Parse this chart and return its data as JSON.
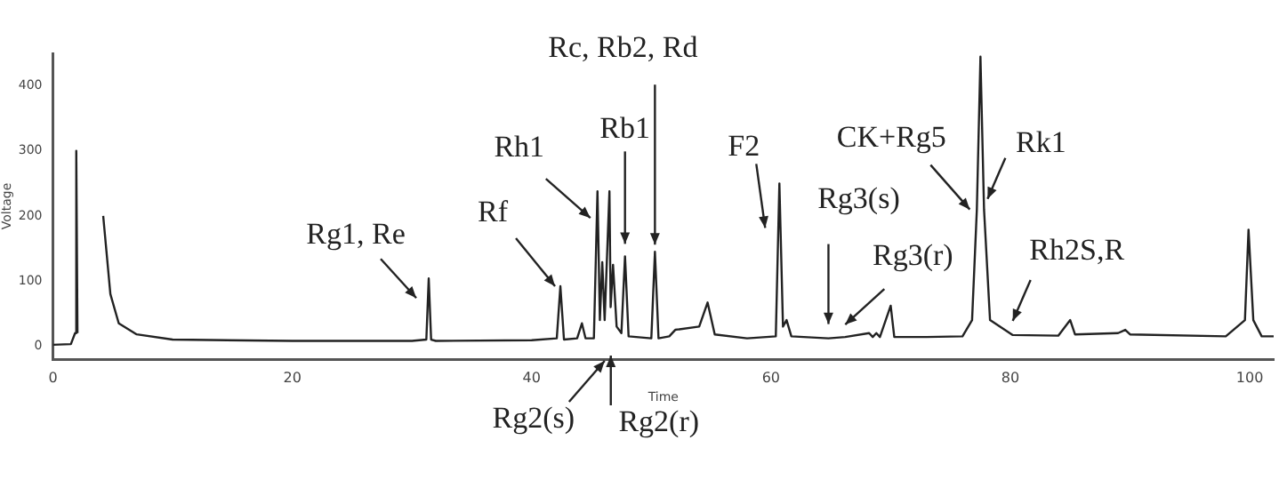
{
  "chart_data": {
    "type": "line",
    "xlabel": "Time",
    "ylabel": "Voltage",
    "xlim": [
      0,
      102
    ],
    "xticks": [
      0,
      20,
      40,
      60,
      80,
      100
    ],
    "ylim": [
      -20,
      450
    ],
    "yticks": [
      0,
      100,
      200,
      300,
      400
    ],
    "grid": false,
    "legend": false,
    "marker": "none",
    "line_style": "solid",
    "series": [
      {
        "color": "#222222",
        "x": [
          0,
          1.5,
          1.85,
          1.95,
          2.05,
          2.15,
          3.5,
          4.2,
          4.8,
          5.5,
          7,
          10,
          20,
          30,
          31.2,
          31.4,
          31.6,
          32,
          40,
          42.1,
          42.4,
          42.7,
          43.8,
          44.2,
          44.5,
          45.2,
          45.5,
          45.7,
          45.9,
          46.1,
          46.5,
          46.6,
          46.8,
          47.1,
          47.5,
          47.8,
          48.1,
          50,
          50.3,
          50.6,
          51.5,
          52,
          54,
          54.7,
          55.3,
          58,
          60.4,
          60.7,
          61,
          61.3,
          61.7,
          64.8,
          66.2,
          68.2,
          68.5,
          68.8,
          69.1,
          70,
          70.3,
          73,
          76,
          76.8,
          77.2,
          77.5,
          77.8,
          78.3,
          80.2,
          84,
          85,
          85.4,
          89,
          89.6,
          90,
          98,
          99.6,
          99.9,
          100.3,
          101,
          102
        ],
        "values": [
          2,
          3,
          20,
          300,
          20,
          null,
          null,
          200,
          80,
          35,
          18,
          10,
          8,
          8,
          10,
          104,
          10,
          8,
          9,
          12,
          92,
          10,
          12,
          35,
          12,
          12,
          238,
          40,
          129,
          40,
          238,
          60,
          125,
          30,
          20,
          138,
          15,
          12,
          145,
          12,
          15,
          25,
          30,
          67,
          18,
          12,
          15,
          250,
          30,
          40,
          15,
          12,
          14,
          20,
          14,
          20,
          14,
          62,
          14,
          14,
          15,
          40,
          210,
          445,
          210,
          40,
          17,
          16,
          40,
          18,
          20,
          25,
          18,
          15,
          40,
          179,
          40,
          15,
          15
        ]
      }
    ],
    "annotations": [
      {
        "text": "Rg1, Re",
        "x": 31.4,
        "y": 104
      },
      {
        "text": "Rf",
        "x": 42.4,
        "y": 92
      },
      {
        "text": "Rh1",
        "x": 45.5,
        "y": 238
      },
      {
        "text": "Rb1",
        "x": 47.8,
        "y": 138
      },
      {
        "text": "Rc, Rb2, Rd",
        "x": 50.3,
        "y": 145
      },
      {
        "text": "Rg2(s)",
        "x": 46.1,
        "y": 40
      },
      "Rg2(r)",
      {
        "text": "F2",
        "x": 60.7,
        "y": 250
      },
      {
        "text": "Rg3(s)",
        "x": 64.8,
        "y": 12
      },
      {
        "text": "Rg3(r)",
        "x": 66.2,
        "y": 14
      },
      {
        "text": "CK+Rg5",
        "x": 77.2,
        "y": 210
      },
      {
        "text": "Rk1",
        "x": 77.5,
        "y": 445
      },
      {
        "text": "Rh2S,R",
        "x": 80.2,
        "y": 17
      }
    ]
  }
}
